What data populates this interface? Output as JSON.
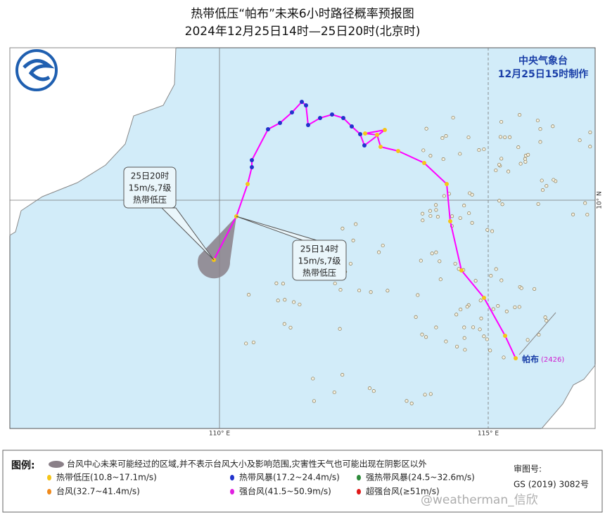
{
  "header": {
    "title": "热带低压“帕布”未来6小时路径概率预报图",
    "subtitle": "2024年12月25日14时—25日20时(北京时)"
  },
  "issuer": {
    "agency": "中央气象台",
    "issued": "12月25日15时制作"
  },
  "map": {
    "axis_labels": {
      "lon_110": "110° E",
      "lon_115": "115° E",
      "lat_10": "10° N"
    },
    "storm_label": {
      "name": "帕布",
      "id": "(2426)"
    },
    "callouts": [
      {
        "time": "25日20时",
        "wind": "15m/s,7级",
        "level": "热带低压"
      },
      {
        "time": "25日14时",
        "wind": "15m/s,7级",
        "level": "热带低压"
      }
    ]
  },
  "legend": {
    "title": "图例:",
    "cone": "台风中心未来可能经过的区域,并不表示台风大小及影响范围,灾害性天气也可能出现在阴影区以外",
    "items": [
      {
        "label": "热带低压(10.8~17.1m/s)",
        "color": "#f5c518"
      },
      {
        "label": "热带风暴(17.2~24.4m/s)",
        "color": "#2233cc"
      },
      {
        "label": "强热带风暴(24.5~32.6m/s)",
        "color": "#2e8b3a"
      },
      {
        "label": "台风(32.7~41.4m/s)",
        "color": "#f08a1c"
      },
      {
        "label": "强台风(41.5~50.9m/s)",
        "color": "#e020e0"
      },
      {
        "label": "超强台风(≥51m/s)",
        "color": "#e01818"
      }
    ]
  },
  "footer": {
    "review_label": "审图号:",
    "review_no": "GS (2019) 3082号",
    "watermark": "@weatherman_信欣"
  }
}
